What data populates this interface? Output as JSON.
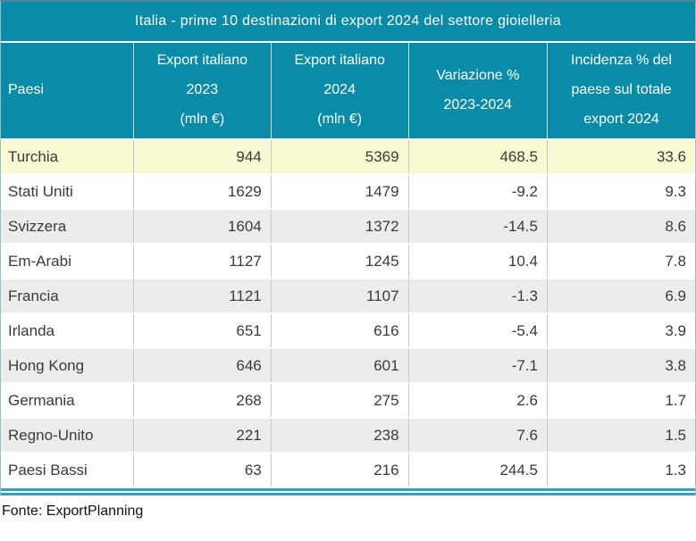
{
  "title": "Italia - prime 10 destinazioni di export 2024 del settore gioielleria",
  "source": "Fonte: ExportPlanning",
  "colors": {
    "header_teal": "#0a8ca8",
    "highlight_row_yellow": "#fafad2",
    "alt_row_gray": "#ececec",
    "bottom_double_line_teal": "#35a2ba",
    "body_text": "#3a3a3a",
    "cell_divider_gray": "#c9c9c9"
  },
  "table": {
    "headers": [
      "Paesi",
      "Export italiano\n2023\n(mln €)",
      "Export italiano\n2024\n(mln €)",
      "Variazione %\n2023-2024",
      "Incidenza % del\npaese sul totale\nexport 2024"
    ],
    "rows": [
      {
        "paese": "Turchia",
        "export_2023": "944",
        "export_2024": "5369",
        "variazione": "468.5",
        "incidenza": "33.6"
      },
      {
        "paese": "Stati Uniti",
        "export_2023": "1629",
        "export_2024": "1479",
        "variazione": "-9.2",
        "incidenza": "9.3"
      },
      {
        "paese": "Svizzera",
        "export_2023": "1604",
        "export_2024": "1372",
        "variazione": "-14.5",
        "incidenza": "8.6"
      },
      {
        "paese": "Em-Arabi",
        "export_2023": "1127",
        "export_2024": "1245",
        "variazione": "10.4",
        "incidenza": "7.8"
      },
      {
        "paese": "Francia",
        "export_2023": "1121",
        "export_2024": "1107",
        "variazione": "-1.3",
        "incidenza": "6.9"
      },
      {
        "paese": "Irlanda",
        "export_2023": "651",
        "export_2024": "616",
        "variazione": "-5.4",
        "incidenza": "3.9"
      },
      {
        "paese": "Hong Kong",
        "export_2023": "646",
        "export_2024": "601",
        "variazione": "-7.1",
        "incidenza": "3.8"
      },
      {
        "paese": "Germania",
        "export_2023": "268",
        "export_2024": "275",
        "variazione": "2.6",
        "incidenza": "1.7"
      },
      {
        "paese": "Regno-Unito",
        "export_2023": "221",
        "export_2024": "238",
        "variazione": "7.6",
        "incidenza": "1.5"
      },
      {
        "paese": "Paesi Bassi",
        "export_2023": "63",
        "export_2024": "216",
        "variazione": "244.5",
        "incidenza": "1.3"
      }
    ]
  },
  "chart_data": {
    "type": "table",
    "title": "Italia - prime 10 destinazioni di export 2024 del settore gioielleria",
    "columns": [
      "Paesi",
      "Export italiano 2023 (mln €)",
      "Export italiano 2024 (mln €)",
      "Variazione % 2023-2024",
      "Incidenza % del paese sul totale export 2024"
    ],
    "rows": [
      [
        "Turchia",
        944,
        5369,
        468.5,
        33.6
      ],
      [
        "Stati Uniti",
        1629,
        1479,
        -9.2,
        9.3
      ],
      [
        "Svizzera",
        1604,
        1372,
        -14.5,
        8.6
      ],
      [
        "Em-Arabi",
        1127,
        1245,
        10.4,
        7.8
      ],
      [
        "Francia",
        1121,
        1107,
        -1.3,
        6.9
      ],
      [
        "Irlanda",
        651,
        616,
        -5.4,
        3.9
      ],
      [
        "Hong Kong",
        646,
        601,
        -7.1,
        3.8
      ],
      [
        "Germania",
        268,
        275,
        2.6,
        1.7
      ],
      [
        "Regno-Unito",
        221,
        238,
        7.6,
        1.5
      ],
      [
        "Paesi Bassi",
        63,
        216,
        244.5,
        1.3
      ]
    ],
    "highlighted_row": "Turchia",
    "source": "Fonte: ExportPlanning"
  }
}
